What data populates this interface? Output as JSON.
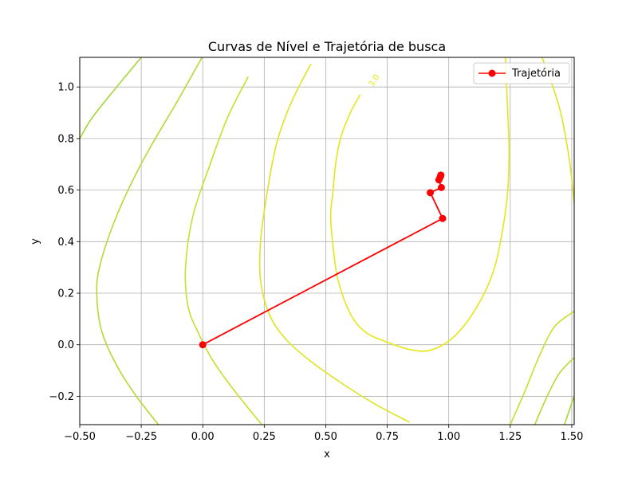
{
  "chart_data": {
    "type": "line",
    "title": "Curvas de Nível e Trajetória de busca",
    "xlabel": "x",
    "ylabel": "y",
    "xlim": [
      -0.5,
      1.51
    ],
    "ylim": [
      -0.31,
      1.115
    ],
    "x_ticks": [
      -0.5,
      -0.25,
      0.0,
      0.25,
      0.5,
      0.75,
      1.0,
      1.25,
      1.5
    ],
    "x_tick_labels": [
      "−0.50",
      "−0.25",
      "0.00",
      "0.25",
      "0.50",
      "0.75",
      "1.00",
      "1.25",
      "1.50"
    ],
    "y_ticks": [
      -0.2,
      0.0,
      0.2,
      0.4,
      0.6,
      0.8,
      1.0
    ],
    "y_tick_labels": [
      "−0.2",
      "0.0",
      "0.2",
      "0.4",
      "0.6",
      "0.8",
      "1.0"
    ],
    "grid": true,
    "legend_position": "top-right",
    "series": [
      {
        "name": "Trajetória",
        "color": "#ff0000",
        "marker": "circle",
        "x": [
          0.0,
          0.975,
          0.925,
          0.97,
          0.96,
          0.965,
          0.967,
          0.968
        ],
        "y": [
          0.0,
          0.49,
          0.59,
          0.61,
          0.64,
          0.65,
          0.655,
          0.658
        ]
      }
    ],
    "contour_label": "3.0",
    "contours": [
      {
        "color": "#e6e619",
        "points": [
          [
            0.64,
            0.97
          ],
          [
            0.6,
            0.9
          ],
          [
            0.56,
            0.8
          ],
          [
            0.54,
            0.7
          ],
          [
            0.53,
            0.6
          ],
          [
            0.52,
            0.5
          ],
          [
            0.53,
            0.38
          ],
          [
            0.55,
            0.25
          ],
          [
            0.6,
            0.12
          ],
          [
            0.66,
            0.05
          ],
          [
            0.75,
            0.01
          ],
          [
            0.85,
            -0.02
          ],
          [
            0.93,
            -0.02
          ],
          [
            1.02,
            0.03
          ],
          [
            1.11,
            0.14
          ],
          [
            1.18,
            0.28
          ],
          [
            1.22,
            0.45
          ],
          [
            1.24,
            0.6
          ],
          [
            1.245,
            0.75
          ],
          [
            1.24,
            0.9
          ],
          [
            1.23,
            1.115
          ]
        ]
      },
      {
        "color": "#dfe41f",
        "points": [
          [
            0.44,
            1.09
          ],
          [
            0.36,
            0.94
          ],
          [
            0.3,
            0.78
          ],
          [
            0.26,
            0.58
          ],
          [
            0.235,
            0.4
          ],
          [
            0.235,
            0.25
          ],
          [
            0.27,
            0.12
          ],
          [
            0.33,
            0.03
          ],
          [
            0.42,
            -0.05
          ],
          [
            0.55,
            -0.14
          ],
          [
            0.7,
            -0.23
          ],
          [
            0.84,
            -0.3
          ]
        ]
      },
      {
        "color": "#dfe41f",
        "points": [
          [
            1.38,
            1.115
          ],
          [
            1.45,
            0.92
          ],
          [
            1.49,
            0.72
          ],
          [
            1.51,
            0.55
          ]
        ]
      },
      {
        "color": "#c9df2a",
        "points": [
          [
            0.185,
            1.04
          ],
          [
            0.1,
            0.88
          ],
          [
            0.03,
            0.7
          ],
          [
            -0.04,
            0.5
          ],
          [
            -0.07,
            0.3
          ],
          [
            -0.06,
            0.15
          ],
          [
            -0.02,
            0.05
          ],
          [
            0.04,
            -0.06
          ],
          [
            0.13,
            -0.18
          ],
          [
            0.24,
            -0.31
          ]
        ]
      },
      {
        "color": "#c9df2a",
        "points": [
          [
            1.25,
            -0.31
          ],
          [
            1.31,
            -0.18
          ],
          [
            1.37,
            -0.04
          ],
          [
            1.43,
            0.07
          ],
          [
            1.51,
            0.13
          ]
        ]
      },
      {
        "color": "#b4da2f",
        "points": [
          [
            0.0,
            1.12
          ],
          [
            -0.1,
            0.95
          ],
          [
            -0.24,
            0.72
          ],
          [
            -0.35,
            0.5
          ],
          [
            -0.42,
            0.3
          ],
          [
            -0.43,
            0.18
          ],
          [
            -0.41,
            0.05
          ],
          [
            -0.35,
            -0.08
          ],
          [
            -0.27,
            -0.2
          ],
          [
            -0.18,
            -0.31
          ]
        ]
      },
      {
        "color": "#b4da2f",
        "points": [
          [
            1.35,
            -0.31
          ],
          [
            1.4,
            -0.2
          ],
          [
            1.45,
            -0.11
          ],
          [
            1.51,
            -0.05
          ]
        ]
      },
      {
        "color": "#a5d634",
        "points": [
          [
            -0.25,
            1.115
          ],
          [
            -0.35,
            1.0
          ],
          [
            -0.45,
            0.88
          ],
          [
            -0.5,
            0.8
          ]
        ]
      },
      {
        "color": "#a5d634",
        "points": [
          [
            1.47,
            -0.31
          ],
          [
            1.51,
            -0.2
          ]
        ]
      }
    ]
  }
}
